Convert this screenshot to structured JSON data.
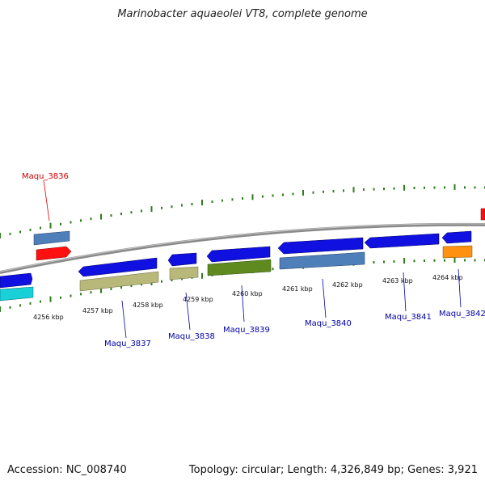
{
  "title": "Marinobacter aquaeolei VT8, complete genome",
  "footer": {
    "accession": "Accession: NC_008740",
    "stats": "Topology: circular; Length: 4,326,849 bp; Genes: 3,921"
  },
  "colors": {
    "backbone": "#8a8a8a",
    "tick": "#2e7d1e",
    "highlight_label": "#d00000",
    "gene_label": "#0000aa"
  },
  "scale_labels": [
    "4256 kbp",
    "4257 kbp",
    "4258 kbp",
    "4259 kbp",
    "4260 kbp",
    "4261 kbp",
    "4262 kbp",
    "4263 kbp",
    "4264 kbp"
  ],
  "gene_labels": [
    {
      "name": "Maqu_3836",
      "highlight": true
    },
    {
      "name": "Maqu_3837",
      "highlight": false
    },
    {
      "name": "Maqu_3838",
      "highlight": false
    },
    {
      "name": "Maqu_3839",
      "highlight": false
    },
    {
      "name": "Maqu_3840",
      "highlight": false
    },
    {
      "name": "Maqu_3841",
      "highlight": false
    },
    {
      "name": "Maqu_3842",
      "highlight": false
    }
  ],
  "features": [
    {
      "id": "f-cds-left-top",
      "color": "#1010e0"
    },
    {
      "id": "f-cds-left-bottom",
      "color": "#19d0d8"
    },
    {
      "id": "f-3836-gene",
      "color": "#4f7fb8"
    },
    {
      "id": "f-3836-cds",
      "color": "#ff1010"
    },
    {
      "id": "f-3837-cds",
      "color": "#1010e0"
    },
    {
      "id": "f-3837-gene",
      "color": "#b8b87a"
    },
    {
      "id": "f-3838-cds",
      "color": "#1010e0"
    },
    {
      "id": "f-3838-gene",
      "color": "#b8b87a"
    },
    {
      "id": "f-3839-cds",
      "color": "#1010e0"
    },
    {
      "id": "f-3839-gene",
      "color": "#5f8a1f"
    },
    {
      "id": "f-3840-cds",
      "color": "#1010e0"
    },
    {
      "id": "f-3840-gene",
      "color": "#4f7fb8"
    },
    {
      "id": "f-3841-cds",
      "color": "#1010e0"
    },
    {
      "id": "f-3842-cds",
      "color": "#1010e0"
    },
    {
      "id": "f-3842-gene",
      "color": "#ff9010"
    },
    {
      "id": "f-edge-red",
      "color": "#ff1010"
    }
  ]
}
